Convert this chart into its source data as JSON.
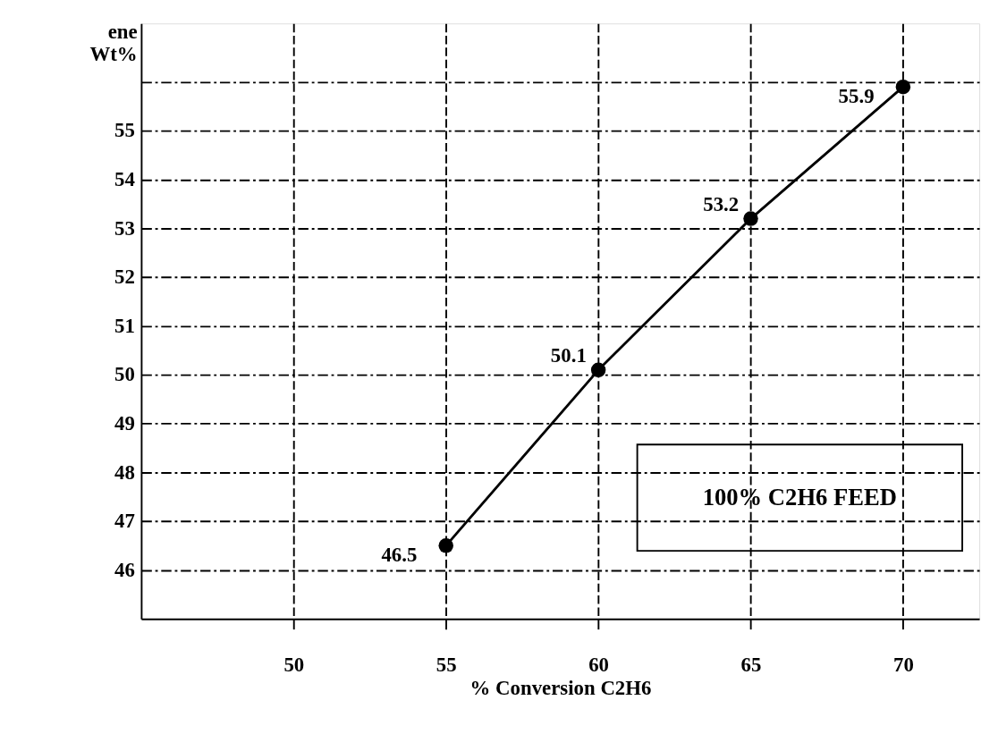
{
  "chart_data": {
    "type": "line",
    "ylabel": "ene\nWt%",
    "xlabel": "% Conversion C2H6",
    "x": [
      55,
      60,
      65,
      70
    ],
    "series": [
      {
        "color": "#000000",
        "values": [
          46.5,
          50.1,
          53.2,
          55.9
        ]
      }
    ],
    "xlim": [
      45,
      72.5
    ],
    "ylim": [
      45,
      57.2
    ],
    "xticks": [
      50,
      55,
      60,
      65,
      70
    ],
    "yticks": [
      46,
      47,
      48,
      49,
      50,
      51,
      52,
      53,
      54,
      55,
      {
        "value": 56,
        "label": null
      }
    ],
    "grid": true,
    "marker": "circle",
    "line_style": "solid",
    "data_labels": true,
    "annotations": [
      "100% C2H6 FEED"
    ]
  }
}
